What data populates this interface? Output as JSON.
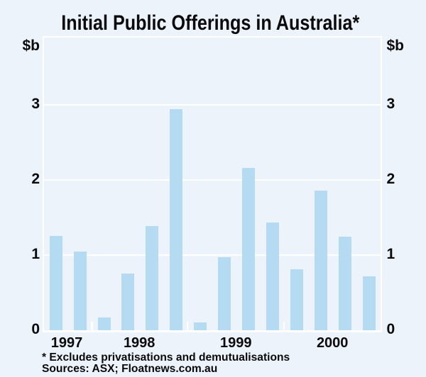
{
  "chart_data": {
    "type": "bar",
    "title": "Initial Public Offerings in Australia*",
    "y_unit": "$b",
    "categories": [
      "1997 Q3",
      "1997 Q4",
      "1998 Q1",
      "1998 Q2",
      "1998 Q3",
      "1998 Q4",
      "1999 Q1",
      "1999 Q2",
      "1999 Q3",
      "1999 Q4",
      "2000 Q1",
      "2000 Q2",
      "2000 Q3",
      "2000 Q4"
    ],
    "values": [
      1.26,
      1.05,
      0.17,
      0.76,
      1.39,
      2.94,
      0.11,
      0.97,
      2.16,
      1.44,
      0.81,
      1.86,
      1.25,
      0.72
    ],
    "x_tick_labels": [
      "1997",
      "1998",
      "1999",
      "2000"
    ],
    "y_tick_labels": [
      "0",
      "1",
      "2",
      "3"
    ],
    "y_ticks": [
      0,
      1,
      2,
      3
    ],
    "ylim": [
      0,
      3.9
    ],
    "xlabel": "",
    "ylabel": "$b",
    "grid": "horizontal white gridlines at integer values",
    "legend": "none",
    "footnote": "* Excludes privatisations and demutualisations",
    "source": "Sources: ASX; Floatnews.com.au",
    "colors": {
      "background": "#edf3fa",
      "bar_fill": "#b4dbf2",
      "bar_edge": "#a9d5ef",
      "gridline": "#ffffff",
      "frame": "#ffffff",
      "text": "#0a0a0c"
    }
  }
}
